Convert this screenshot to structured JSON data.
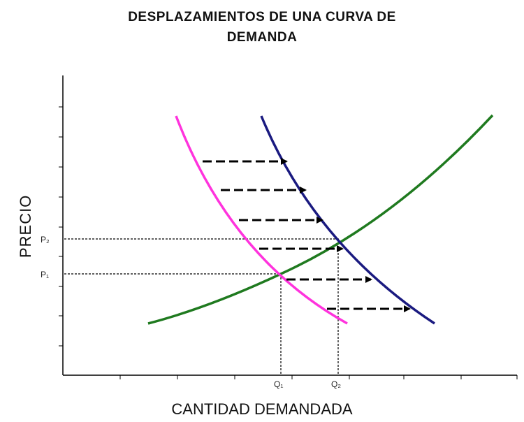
{
  "title_line1": "DESPLAZAMIENTOS DE UNA CURVA DE",
  "title_line2": "DEMANDA",
  "ylabel": "PRECIO",
  "xlabel": "CANTIDAD DEMANDADA",
  "price_labels": {
    "p1": "P₁",
    "p2": "P₂"
  },
  "quantity_labels": {
    "q1": "Q₁",
    "q2": "Q₂"
  },
  "colors": {
    "demand_initial": "#ff33dd",
    "demand_shifted": "#1a1a80",
    "supply": "#1f7a1f"
  },
  "shift_arrows": 6
}
